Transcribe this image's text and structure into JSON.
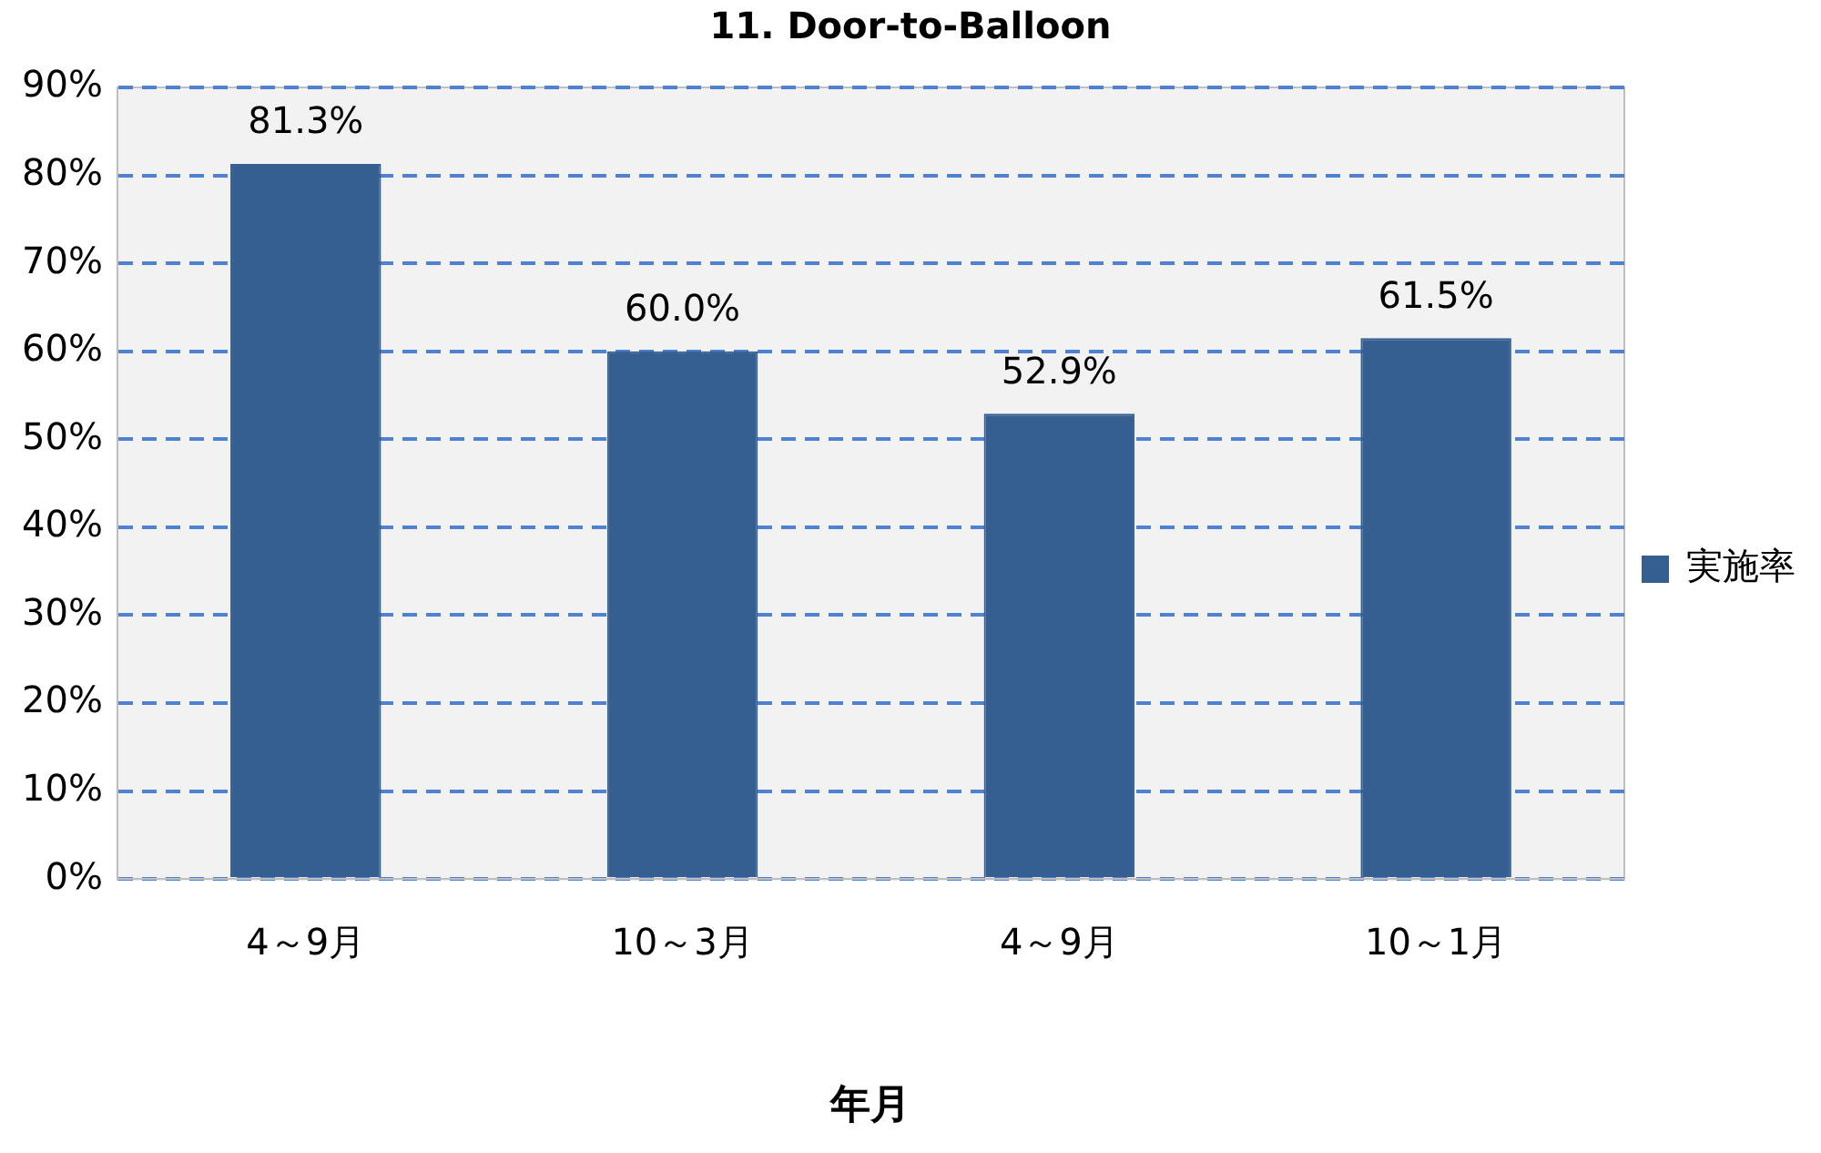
{
  "chart_data": {
    "type": "bar",
    "title": "11. Door-to-Balloon",
    "xlabel": "年月",
    "categories": [
      "4～9月",
      "10～3月",
      "4～9月",
      "10～1月"
    ],
    "series": [
      {
        "name": "実施率",
        "color": "#365f91",
        "values": [
          81.3,
          60.0,
          52.9,
          61.5
        ],
        "value_labels": [
          "81.3%",
          "60.0%",
          "52.9%",
          "61.5%"
        ]
      }
    ],
    "ylim": [
      0,
      90
    ],
    "yticks": [
      {
        "value": 0,
        "label": "0%"
      },
      {
        "value": 10,
        "label": "10%"
      },
      {
        "value": 20,
        "label": "20%"
      },
      {
        "value": 30,
        "label": "30%"
      },
      {
        "value": 40,
        "label": "40%"
      },
      {
        "value": 50,
        "label": "50%"
      },
      {
        "value": 60,
        "label": "60%"
      },
      {
        "value": 70,
        "label": "70%"
      },
      {
        "value": 80,
        "label": "80%"
      },
      {
        "value": 90,
        "label": "90%"
      }
    ],
    "grid": "y",
    "line_style": "dashed",
    "legend": "right"
  }
}
